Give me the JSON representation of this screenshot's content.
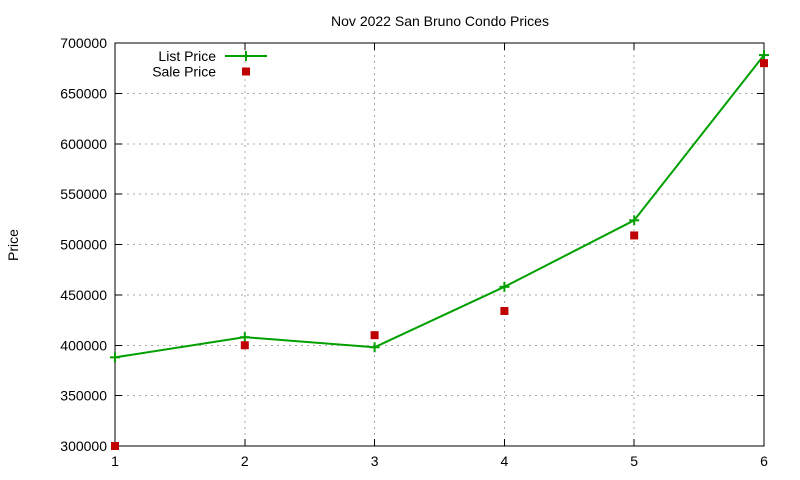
{
  "chart_data": {
    "type": "line",
    "title": "Nov 2022 San Bruno Condo Prices",
    "xlabel": "",
    "ylabel": "Price",
    "x": [
      1,
      2,
      3,
      4,
      5,
      6
    ],
    "xticks": [
      1,
      2,
      3,
      4,
      5,
      6
    ],
    "yticks": [
      300000,
      350000,
      400000,
      450000,
      500000,
      550000,
      600000,
      650000,
      700000
    ],
    "xlim": [
      1,
      6
    ],
    "ylim": [
      300000,
      700000
    ],
    "ytick_step": 50000,
    "grid": true,
    "grid_style": "dotted",
    "legend_position": "top-left-inside",
    "series": [
      {
        "name": "List Price",
        "render": "line-with-plus-markers",
        "marker": "plus",
        "color": "#00a000",
        "values": [
          388000,
          408000,
          398000,
          458000,
          524000,
          688000
        ]
      },
      {
        "name": "Sale Price",
        "render": "scatter",
        "marker": "square",
        "color": "#c00000",
        "values": [
          300000,
          400000,
          410000,
          434000,
          509000,
          680000
        ]
      }
    ],
    "colors": {
      "background": "#ffffff",
      "axis": "#000000",
      "grid": "#a9a9a9",
      "text": "#000000"
    }
  }
}
